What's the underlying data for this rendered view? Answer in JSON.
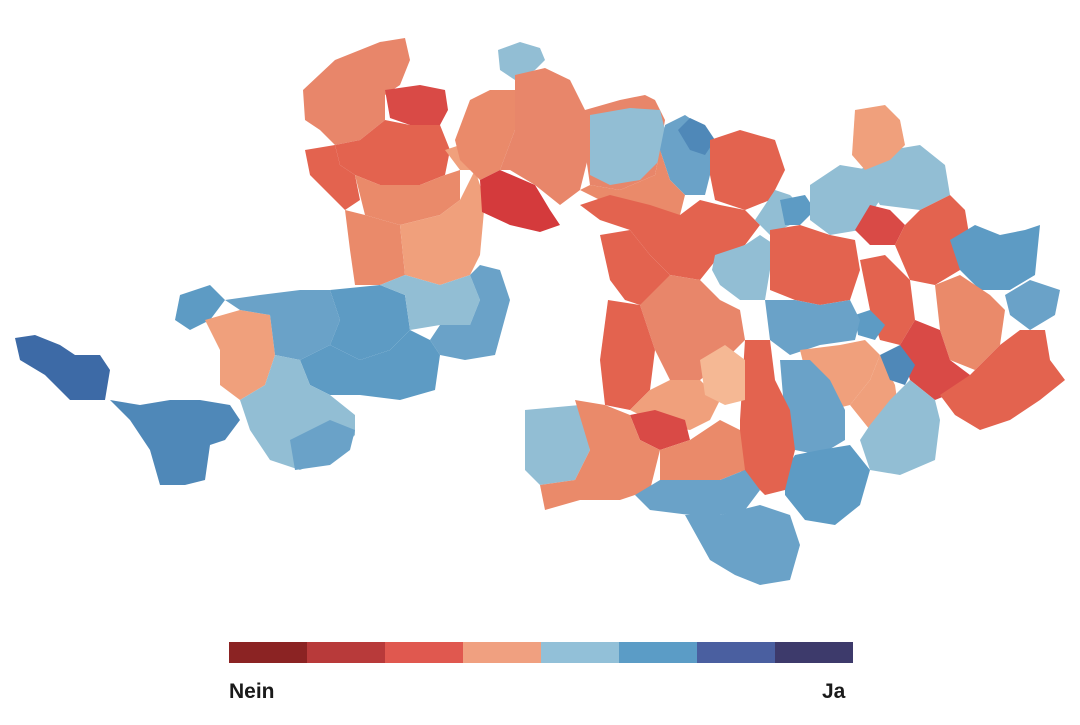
{
  "legend": {
    "left_label": "Nein",
    "right_label": "Ja",
    "colors": [
      "#8b2323",
      "#b83a3a",
      "#e0584f",
      "#f0a080",
      "#92c0d8",
      "#5b9cc6",
      "#4a5fa0",
      "#3d3a6b"
    ]
  },
  "palette": {
    "red_dark": "#d94a46",
    "red": "#e3634f",
    "salmon": "#ea8a6a",
    "peach": "#f0a07c",
    "blue_light": "#92bed4",
    "blue": "#5d9bc4",
    "blue_mid": "#4f88b8",
    "blue_dark": "#3d6aa6"
  }
}
